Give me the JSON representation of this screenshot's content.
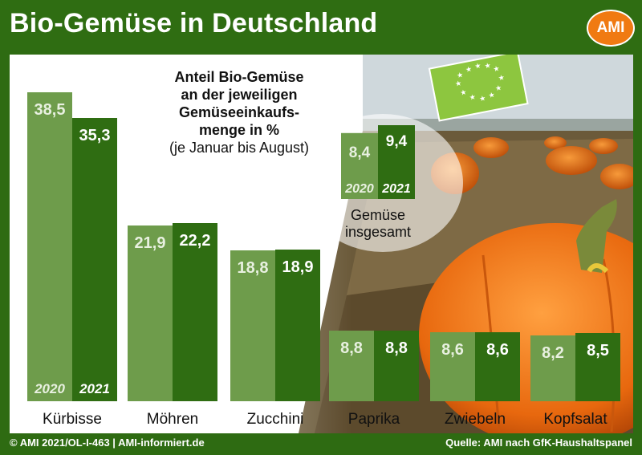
{
  "header": {
    "title": "Bio-Gemüse in Deutschland",
    "logo_text": "AMI"
  },
  "subtitle_lines": [
    "Anteil Bio-Gemüse",
    "an der jeweiligen",
    "Gemüseeinkaufs-",
    "menge in %",
    "(je Januar bis August)"
  ],
  "footer": {
    "left": "© AMI 2021/OL-I-463 | AMI-informiert.de",
    "right": "Quelle: AMI nach GfK-Haushaltspanel"
  },
  "colors": {
    "bar_2020": "#6e9c4b",
    "bar_2021": "#2f6d12",
    "header_bg": "#2f6d12",
    "logo": "#f07a12",
    "eu_leaf": "#8dc63f"
  },
  "chart_data": {
    "type": "bar",
    "categories": [
      "Kürbisse",
      "Möhren",
      "Zucchini",
      "Paprika",
      "Zwiebeln",
      "Kopfsalat"
    ],
    "series": [
      {
        "name": "2020",
        "values": [
          38.5,
          21.9,
          18.8,
          8.8,
          8.6,
          8.2
        ],
        "labels": [
          "38,5",
          "21,9",
          "18,8",
          "8,8",
          "8,6",
          "8,2"
        ]
      },
      {
        "name": "2021",
        "values": [
          35.3,
          22.2,
          18.9,
          8.8,
          8.6,
          8.5
        ],
        "labels": [
          "35,3",
          "22,2",
          "18,9",
          "8,8",
          "8,6",
          "8,5"
        ]
      }
    ],
    "overall": {
      "label_lines": [
        "Gemüse",
        "insgesamt"
      ],
      "values": [
        8.4,
        9.4
      ],
      "labels": [
        "8,4",
        "9,4"
      ],
      "years": [
        "2020",
        "2021"
      ]
    },
    "ylim": [
      0,
      40
    ],
    "grid": false,
    "legend": "in first bar"
  }
}
